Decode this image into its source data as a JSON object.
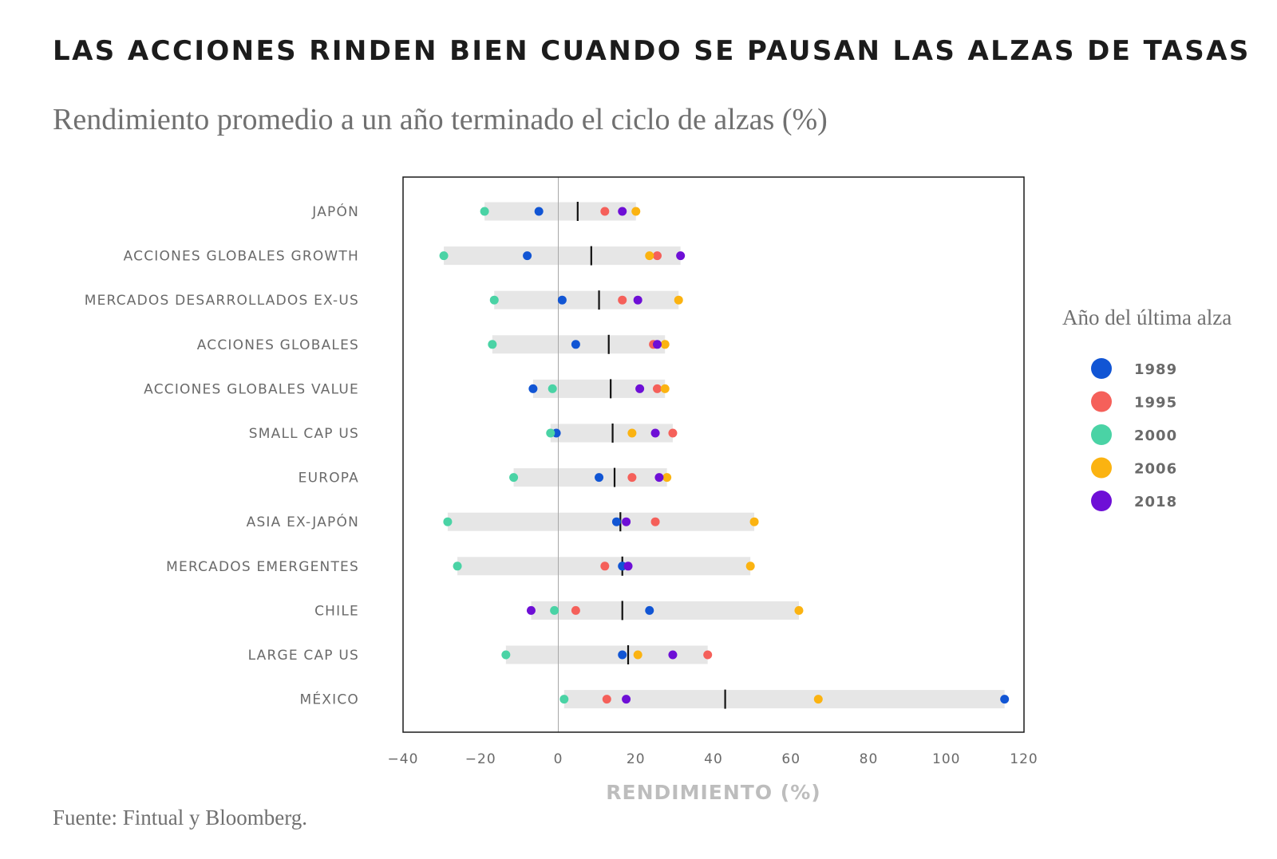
{
  "title": "LAS ACCIONES RINDEN BIEN CUANDO SE PAUSAN LAS ALZAS DE TASAS",
  "subtitle": "Rendimiento promedio a un año terminado el ciclo de alzas (%)",
  "source": "Fuente: Fintual y Bloomberg.",
  "chart_data": {
    "type": "scatter",
    "orientation": "horizontal-dot-plot",
    "xlabel": "RENDIMIENTO (%)",
    "xlim": [
      -40,
      120
    ],
    "xticks": [
      -40,
      -20,
      0,
      20,
      40,
      60,
      80,
      100,
      120
    ],
    "xtick_labels": [
      "−40",
      "−20",
      "0",
      "20",
      "40",
      "60",
      "80",
      "100",
      "120"
    ],
    "grid": false,
    "legend_title": "Año del última alza",
    "legend_position": "right",
    "categories": [
      "JAPÓN",
      "ACCIONES GLOBALES GROWTH",
      "MERCADOS DESARROLLADOS EX-US",
      "ACCIONES GLOBALES",
      "ACCIONES GLOBALES VALUE",
      "SMALL CAP US",
      "EUROPA",
      "ASIA EX-JAPÓN",
      "MERCADOS EMERGENTES",
      "CHILE",
      "LARGE CAP US",
      "MÉXICO"
    ],
    "averages": [
      5,
      8.5,
      10.5,
      13,
      13.5,
      14,
      14.5,
      16,
      16.5,
      16.5,
      18,
      43
    ],
    "series": [
      {
        "name": "1989",
        "color": "#1155d4",
        "values": [
          -5,
          -8,
          1,
          4.5,
          -6.5,
          -0.5,
          10.5,
          15,
          16.5,
          23.5,
          16.5,
          115
        ]
      },
      {
        "name": "1995",
        "color": "#f5605a",
        "values": [
          12,
          25.5,
          16.5,
          24.5,
          25.5,
          29.5,
          19,
          25,
          12,
          4.5,
          38.5,
          12.5
        ]
      },
      {
        "name": "2000",
        "color": "#4ad3a5",
        "values": [
          -19,
          -29.5,
          -16.5,
          -17,
          -1.5,
          -2,
          -11.5,
          -28.5,
          -26,
          -1,
          -13.5,
          1.5
        ]
      },
      {
        "name": "2006",
        "color": "#fbb311",
        "values": [
          20,
          23.5,
          31,
          27.5,
          27.5,
          19,
          28,
          50.5,
          49.5,
          62,
          20.5,
          67
        ]
      },
      {
        "name": "2018",
        "color": "#6e0fd6",
        "values": [
          16.5,
          31.5,
          20.5,
          25.5,
          21,
          25,
          26,
          17.5,
          18,
          -7,
          29.5,
          17.5
        ]
      }
    ]
  }
}
